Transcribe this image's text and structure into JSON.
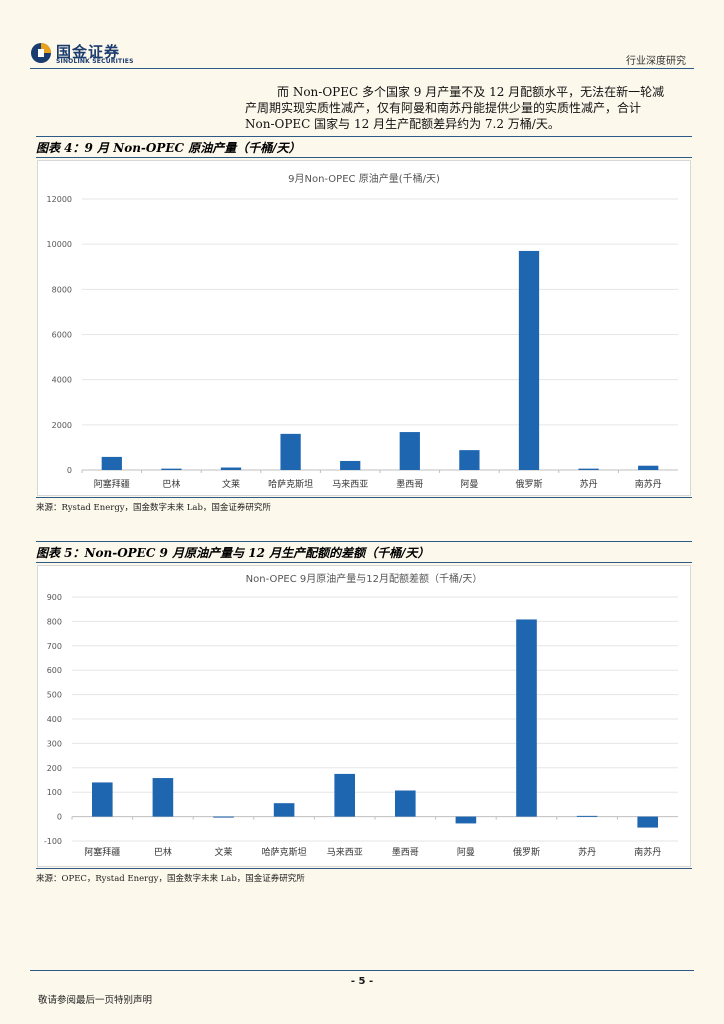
{
  "header": {
    "logo_cn": "国金证券",
    "logo_en": "SINOLINK SECURITIES",
    "right_text": "行业深度研究"
  },
  "paragraph": {
    "lines": [
      "而 Non-OPEC 多个国家 9 月产量不及 12 月配额水平，无法在新一轮减",
      "产周期实现实质性减产，仅有阿曼和南苏丹能提供少量的实质性减产，合计",
      "Non-OPEC 国家与 12 月生产配额差异约为 7.2 万桶/天。"
    ]
  },
  "figure4": {
    "caption": "图表 4：9 月 Non-OPEC 原油产量（千桶/天）",
    "source": "来源：Rystad Energy，国金数字未来 Lab，国金证券研究所"
  },
  "figure5": {
    "caption": "图表 5：Non-OPEC 9 月原油产量与 12 月生产配额的差额（千桶/天）",
    "source": "来源：OPEC，Rystad Energy，国金数字未来 Lab，国金证券研究所"
  },
  "chart_data": [
    {
      "type": "bar",
      "title": "9月Non-OPEC 原油产量(千桶/天)",
      "categories": [
        "阿塞拜疆",
        "巴林",
        "文莱",
        "哈萨克斯坦",
        "马来西亚",
        "墨西哥",
        "阿曼",
        "俄罗斯",
        "苏丹",
        "南苏丹"
      ],
      "values": [
        580,
        60,
        110,
        1600,
        400,
        1680,
        880,
        9700,
        60,
        190
      ],
      "ylim": [
        0,
        12000
      ],
      "yticks": [
        0,
        2000,
        4000,
        6000,
        8000,
        10000,
        12000
      ],
      "xlabel": "",
      "ylabel": "",
      "color": "#1f66b0",
      "grid": true
    },
    {
      "type": "bar",
      "title": "Non-OPEC  9月原油产量与12月配额差额（千桶/天）",
      "categories": [
        "阿塞拜疆",
        "巴林",
        "文莱",
        "哈萨克斯坦",
        "马来西亚",
        "墨西哥",
        "阿曼",
        "俄罗斯",
        "苏丹",
        "南苏丹"
      ],
      "values": [
        140,
        158,
        -3,
        55,
        175,
        107,
        -28,
        808,
        3,
        -45
      ],
      "ylim": [
        -100,
        900
      ],
      "yticks": [
        -100,
        0,
        100,
        200,
        300,
        400,
        500,
        600,
        700,
        800,
        900
      ],
      "xlabel": "",
      "ylabel": "",
      "color": "#1f66b0",
      "grid": true
    }
  ],
  "footer": {
    "page_number": "- 5 -",
    "disclaimer": "敬请参阅最后一页特别声明"
  }
}
